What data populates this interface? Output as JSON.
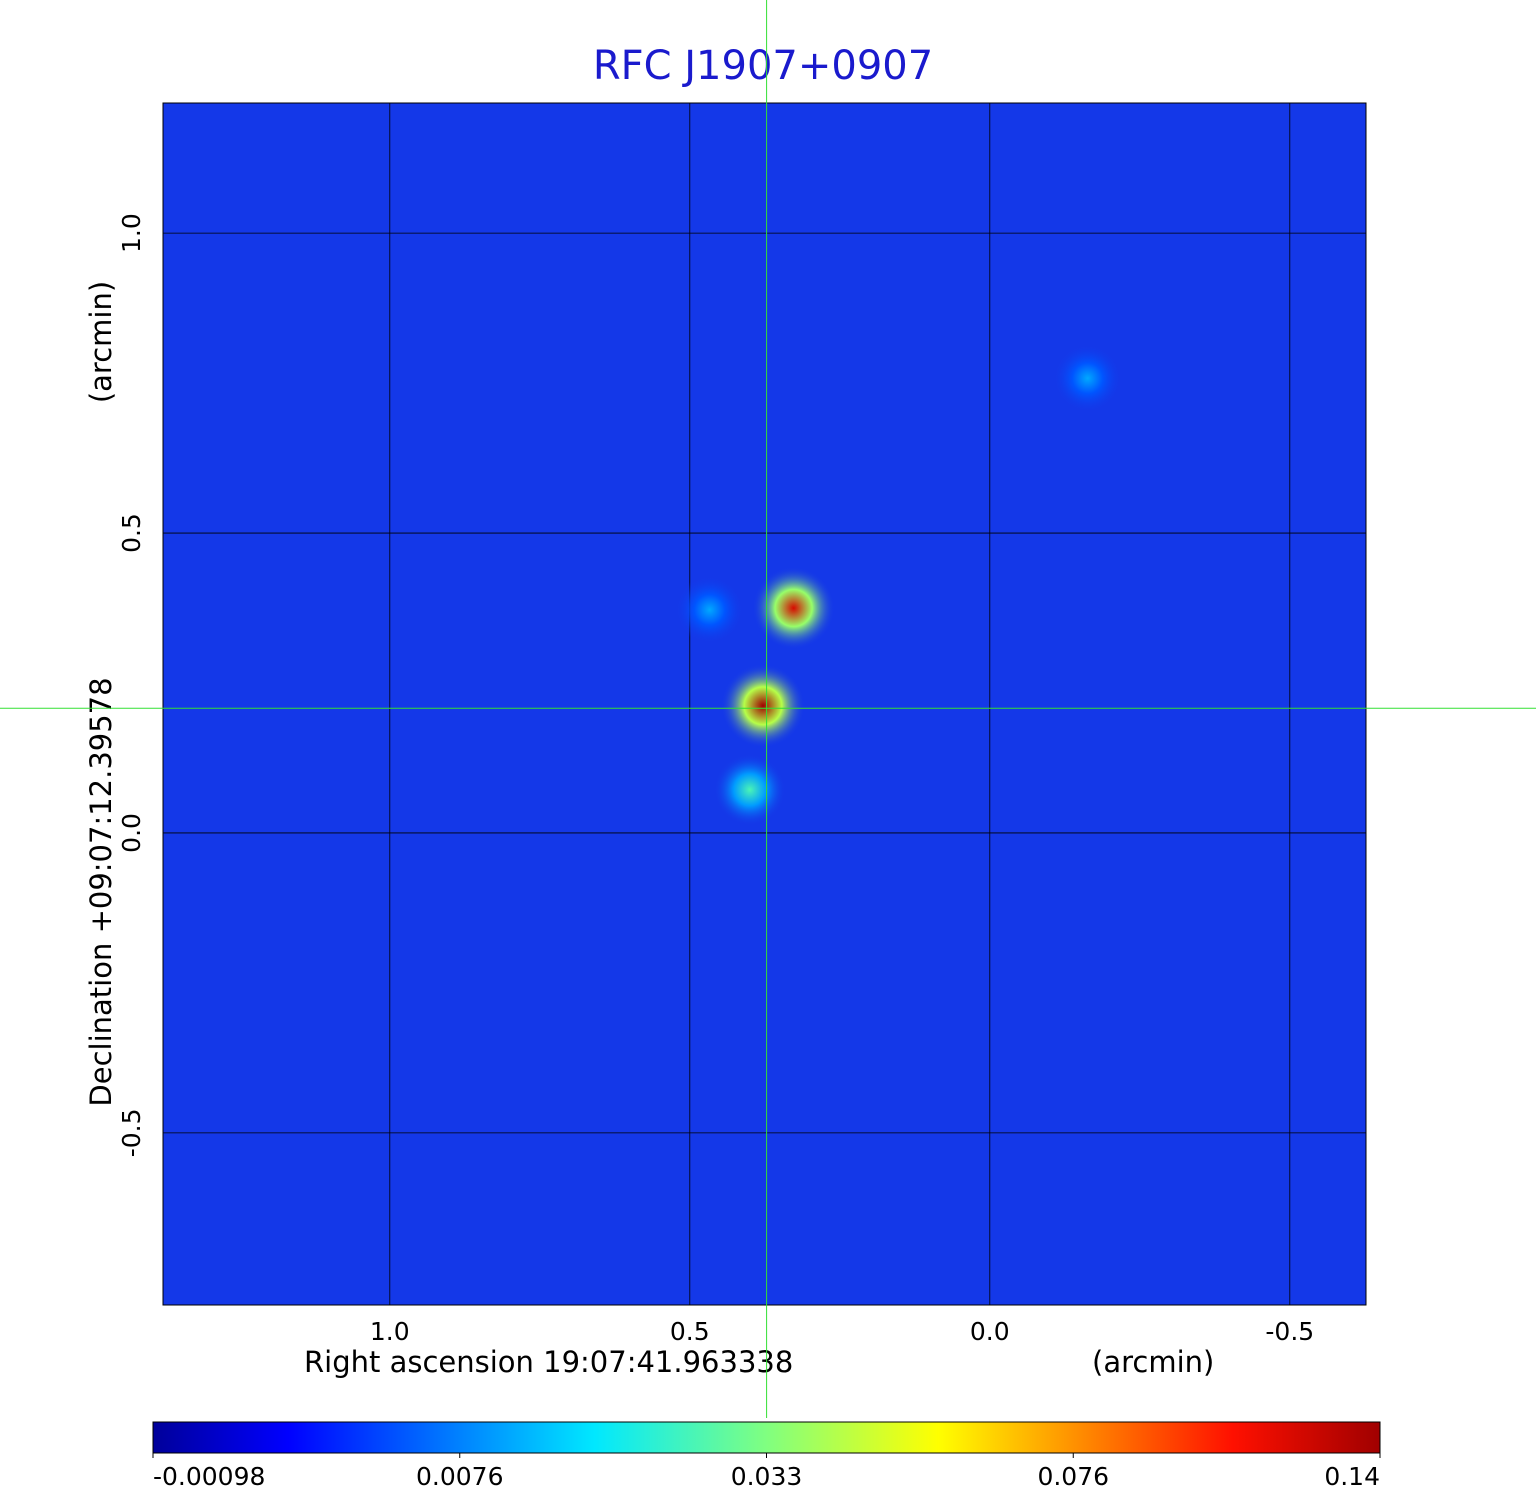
{
  "chart_data": {
    "type": "image",
    "title": "RFC J1907+0907",
    "xlabel": "Right ascension  19:07:41.963338",
    "xunit": "(arcmin)",
    "ylabel": "Declination  +09:07:12.39578",
    "yunit": "(arcmin)",
    "xlim": [
      1.378,
      -0.627
    ],
    "ylim": [
      -0.787,
      1.217
    ],
    "xticks": [
      {
        "value": 1,
        "label": "1.0"
      },
      0.5,
      {
        "value": 0,
        "label": "0.0"
      },
      -0.5
    ],
    "yticks": [
      {
        "value": 1,
        "label": "1.0"
      },
      0.5,
      {
        "value": 0,
        "label": "0.0"
      },
      -0.5
    ],
    "grid": true,
    "crosshair": {
      "x": 0.372,
      "y": 0.208
    },
    "colormap": "jet",
    "colorbar_ticks": [
      -0.00098,
      0.0076,
      0.033,
      0.076,
      0.14
    ],
    "sources": [
      {
        "x": 0.378,
        "y": 0.212,
        "peak": 0.14
      },
      {
        "x": 0.327,
        "y": 0.375,
        "peak": 0.12
      },
      {
        "x": 0.4,
        "y": 0.072,
        "peak": 0.02
      },
      {
        "x": 0.467,
        "y": 0.372,
        "peak": 0.006
      },
      {
        "x": -0.163,
        "y": 0.758,
        "peak": 0.006
      }
    ]
  }
}
